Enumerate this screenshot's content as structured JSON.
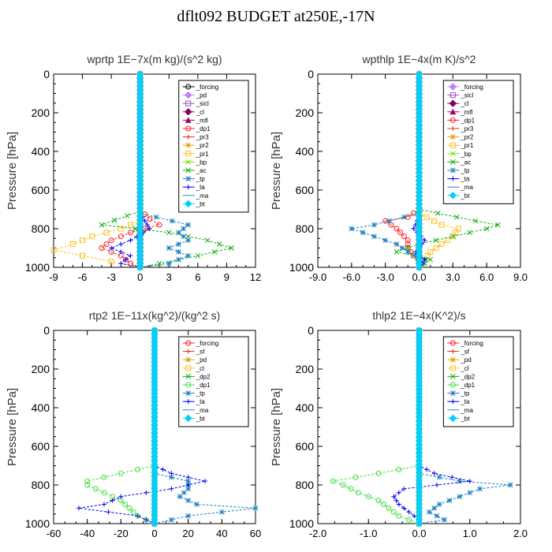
{
  "page_title": "dflt092  BUDGET at250E,-17N",
  "chart_data": [
    {
      "type": "line",
      "title": "wprtp   1E−7x(m kg)/(s^2 kg)",
      "ylabel": "Pressure [hPa]",
      "xlim": [
        -9,
        12
      ],
      "ylim": [
        1000,
        0
      ],
      "xticks": [
        "-9",
        "-6",
        "-3",
        "0",
        "3",
        "6",
        "9",
        "12"
      ],
      "xtick_values": [
        -9,
        -6,
        -3,
        0,
        3,
        6,
        9,
        12
      ],
      "yticks": [
        "0",
        "200",
        "400",
        "600",
        "800",
        "1000"
      ],
      "ytick_values": [
        0,
        200,
        400,
        600,
        800,
        1000
      ],
      "legend_position": "top-right",
      "series": [
        {
          "name": "_forcing",
          "color": "#000000",
          "marker": "circle",
          "p": [
            0,
            1000
          ],
          "v": [
            0,
            0
          ]
        },
        {
          "name": "_pd",
          "color": "#c080ff",
          "marker": "diamond",
          "p": [
            0,
            1000
          ],
          "v": [
            0,
            0
          ]
        },
        {
          "name": "_sicl",
          "color": "#a050c0",
          "marker": "square",
          "p": [
            0,
            1000
          ],
          "v": [
            0,
            0
          ]
        },
        {
          "name": "_cl",
          "color": "#800060",
          "marker": "diamond",
          "p": [
            0,
            1000
          ],
          "v": [
            0,
            0
          ]
        },
        {
          "name": "_mfl",
          "color": "#a00060",
          "marker": "triangle",
          "p": [
            0,
            1000
          ],
          "v": [
            0,
            0
          ]
        },
        {
          "name": "_dp1",
          "color": "#ff2020",
          "marker": "circle",
          "p": [
            0,
            700,
            750,
            780,
            820,
            860,
            900,
            940,
            980,
            1000
          ],
          "v": [
            0,
            0,
            1,
            2,
            -1,
            -3,
            -4,
            -2,
            -1,
            0
          ]
        },
        {
          "name": "_pr3",
          "color": "#e03020",
          "marker": "plus",
          "p": [
            0,
            1000
          ],
          "v": [
            0,
            0
          ]
        },
        {
          "name": "_pr2",
          "color": "#e0a000",
          "marker": "star",
          "p": [
            0,
            1000
          ],
          "v": [
            0,
            0
          ]
        },
        {
          "name": "_pr1",
          "color": "#ffc020",
          "marker": "square",
          "p": [
            0,
            760,
            800,
            840,
            880,
            910,
            940,
            970,
            1000
          ],
          "v": [
            0,
            0,
            -2,
            -5,
            -7,
            -9,
            -6,
            -3,
            0
          ]
        },
        {
          "name": "_bp",
          "color": "#80e000",
          "marker": "cross",
          "p": [
            0,
            1000
          ],
          "v": [
            0,
            0
          ]
        },
        {
          "name": "_ac",
          "color": "#10b010",
          "marker": "cross",
          "p": [
            0,
            710,
            780,
            820,
            860,
            900,
            940,
            980,
            1000
          ],
          "v": [
            0,
            0,
            -4,
            3,
            7,
            9.5,
            6,
            2,
            0
          ]
        },
        {
          "name": "_tp",
          "color": "#2080c0",
          "marker": "star",
          "p": [
            0,
            720,
            780,
            820,
            860,
            900,
            940,
            980,
            1000
          ],
          "v": [
            0,
            0,
            5,
            4,
            5,
            3,
            5,
            3,
            0
          ]
        },
        {
          "name": "_ta",
          "color": "#0000ff",
          "marker": "plus",
          "p": [
            0,
            720,
            800,
            860,
            900,
            940,
            980,
            1000
          ],
          "v": [
            0,
            0,
            1,
            -1,
            -3,
            -1,
            -2,
            0
          ]
        },
        {
          "name": "_ma",
          "color": "#3080e0",
          "marker": "none",
          "p": [
            0,
            1000
          ],
          "v": [
            0,
            0
          ]
        },
        {
          "name": "_bt",
          "color": "#00d0ff",
          "marker": "diamond",
          "p": [
            0,
            1000
          ],
          "v": [
            0,
            0
          ]
        }
      ]
    },
    {
      "type": "line",
      "title": "wpthlp   1E−4x(m K)/s^2",
      "ylabel": "Pressure [hPa]",
      "xlim": [
        -9,
        9
      ],
      "ylim": [
        1000,
        0
      ],
      "xticks": [
        "-9.0",
        "-6.0",
        "-3.0",
        "0.0",
        "3.0",
        "6.0",
        "9.0"
      ],
      "xtick_values": [
        -9,
        -6,
        -3,
        0,
        3,
        6,
        9
      ],
      "yticks": [
        "0",
        "200",
        "400",
        "600",
        "800",
        "1000"
      ],
      "ytick_values": [
        0,
        200,
        400,
        600,
        800,
        1000
      ],
      "legend_position": "top-right",
      "series": [
        {
          "name": "_forcing",
          "color": "#c080ff",
          "marker": "diamond",
          "p": [
            0,
            1000
          ],
          "v": [
            0,
            0
          ]
        },
        {
          "name": "_sicl",
          "color": "#a050c0",
          "marker": "square",
          "p": [
            0,
            1000
          ],
          "v": [
            0,
            0
          ]
        },
        {
          "name": "_cl",
          "color": "#800060",
          "marker": "diamond",
          "p": [
            0,
            1000
          ],
          "v": [
            0,
            0
          ]
        },
        {
          "name": "_mfl",
          "color": "#a00060",
          "marker": "triangle",
          "p": [
            0,
            1000
          ],
          "v": [
            0,
            0
          ]
        },
        {
          "name": "_dp1",
          "color": "#ff2020",
          "marker": "circle",
          "p": [
            0,
            700,
            740,
            760,
            800,
            860,
            900,
            940,
            980,
            1000
          ],
          "v": [
            0,
            0,
            -1,
            -3,
            -2,
            -1,
            -1,
            -0.5,
            0.3,
            0
          ]
        },
        {
          "name": "_pr3",
          "color": "#e03020",
          "marker": "plus",
          "p": [
            0,
            1000
          ],
          "v": [
            0,
            0
          ]
        },
        {
          "name": "_pr2",
          "color": "#e0a000",
          "marker": "star",
          "p": [
            0,
            1000
          ],
          "v": [
            0,
            0
          ]
        },
        {
          "name": "_pr1",
          "color": "#ffc020",
          "marker": "square",
          "p": [
            0,
            720,
            780,
            800,
            840,
            880,
            920,
            960,
            1000
          ],
          "v": [
            0,
            0,
            2,
            3.5,
            3,
            2,
            1,
            0.5,
            0
          ]
        },
        {
          "name": "_bp",
          "color": "#80e000",
          "marker": "cross",
          "p": [
            0,
            1000
          ],
          "v": [
            0,
            0
          ]
        },
        {
          "name": "_ac",
          "color": "#10b010",
          "marker": "cross",
          "p": [
            0,
            700,
            760,
            780,
            800,
            840,
            880,
            920,
            960,
            1000
          ],
          "v": [
            0,
            0,
            5,
            7,
            6,
            3,
            0,
            -2,
            1,
            0
          ]
        },
        {
          "name": "_tp",
          "color": "#2080c0",
          "marker": "star",
          "p": [
            0,
            720,
            780,
            800,
            840,
            880,
            920,
            960,
            1000
          ],
          "v": [
            0,
            0,
            -4,
            -6,
            -4,
            -2,
            -1,
            0.5,
            0
          ]
        },
        {
          "name": "_ta",
          "color": "#0000ff",
          "marker": "plus",
          "p": [
            0,
            740,
            800,
            860,
            920,
            960,
            1000
          ],
          "v": [
            0,
            0,
            -0.5,
            0.5,
            -0.3,
            0.5,
            0
          ]
        },
        {
          "name": "_ma",
          "color": "#3080e0",
          "marker": "none",
          "p": [
            0,
            1000
          ],
          "v": [
            0,
            0
          ]
        },
        {
          "name": "_bt",
          "color": "#00d0ff",
          "marker": "diamond",
          "p": [
            0,
            1000
          ],
          "v": [
            0,
            0
          ]
        }
      ]
    },
    {
      "type": "line",
      "title": "rtp2   1E−11x(kg^2)/(kg^2 s)",
      "ylabel": "Pressure [hPa]",
      "xlim": [
        -60,
        60
      ],
      "ylim": [
        1000,
        0
      ],
      "xticks": [
        "-60",
        "-40",
        "-20",
        "0",
        "20",
        "40",
        "60"
      ],
      "xtick_values": [
        -60,
        -40,
        -20,
        0,
        20,
        40,
        60
      ],
      "yticks": [
        "0",
        "200",
        "400",
        "600",
        "800",
        "1000"
      ],
      "ytick_values": [
        0,
        200,
        400,
        600,
        800,
        1000
      ],
      "legend_position": "top-right",
      "series": [
        {
          "name": "_forcing",
          "color": "#ff2020",
          "marker": "circle",
          "p": [
            0,
            1000
          ],
          "v": [
            0,
            0
          ]
        },
        {
          "name": "_sf",
          "color": "#e03020",
          "marker": "plus",
          "p": [
            0,
            1000
          ],
          "v": [
            0,
            0
          ]
        },
        {
          "name": "_pd",
          "color": "#e0a000",
          "marker": "star",
          "p": [
            0,
            1000
          ],
          "v": [
            0,
            0
          ]
        },
        {
          "name": "_cl",
          "color": "#ffc020",
          "marker": "square",
          "p": [
            0,
            1000
          ],
          "v": [
            0,
            0
          ]
        },
        {
          "name": "_dp2",
          "color": "#10b010",
          "marker": "cross",
          "p": [
            0,
            1000
          ],
          "v": [
            0,
            0
          ]
        },
        {
          "name": "_dp1",
          "color": "#40e040",
          "marker": "circle",
          "p": [
            0,
            700,
            740,
            780,
            800,
            840,
            880,
            920,
            960,
            1000
          ],
          "v": [
            0,
            0,
            -20,
            -40,
            -40,
            -30,
            -20,
            -15,
            -10,
            0
          ]
        },
        {
          "name": "_tp",
          "color": "#2080c0",
          "marker": "star",
          "p": [
            0,
            740,
            780,
            820,
            860,
            900,
            920,
            960,
            1000
          ],
          "v": [
            0,
            0,
            20,
            20,
            15,
            25,
            60,
            20,
            0
          ]
        },
        {
          "name": "_ta",
          "color": "#0000ff",
          "marker": "plus",
          "p": [
            0,
            700,
            740,
            780,
            820,
            860,
            900,
            920,
            960,
            1000
          ],
          "v": [
            0,
            0,
            10,
            30,
            10,
            -20,
            -30,
            -45,
            -10,
            0
          ]
        },
        {
          "name": "_ma",
          "color": "#3080e0",
          "marker": "none",
          "p": [
            0,
            1000
          ],
          "v": [
            0,
            0
          ]
        },
        {
          "name": "_bt",
          "color": "#00d0ff",
          "marker": "diamond",
          "p": [
            0,
            1000
          ],
          "v": [
            0,
            0
          ]
        }
      ]
    },
    {
      "type": "line",
      "title": "thlp2   1E−4x(K^2)/s",
      "ylabel": "Pressure [hPa]",
      "xlim": [
        -2,
        2
      ],
      "ylim": [
        1000,
        0
      ],
      "xticks": [
        "-2.0",
        "-1.0",
        "0.0",
        "1.0",
        "2.0"
      ],
      "xtick_values": [
        -2,
        -1,
        0,
        1,
        2
      ],
      "yticks": [
        "0",
        "200",
        "400",
        "600",
        "800",
        "1000"
      ],
      "ytick_values": [
        0,
        200,
        400,
        600,
        800,
        1000
      ],
      "legend_position": "top-right",
      "series": [
        {
          "name": "_forcing",
          "color": "#ff2020",
          "marker": "circle",
          "p": [
            0,
            1000
          ],
          "v": [
            0,
            0
          ]
        },
        {
          "name": "_sf",
          "color": "#e03020",
          "marker": "plus",
          "p": [
            0,
            1000
          ],
          "v": [
            0,
            0
          ]
        },
        {
          "name": "_pd",
          "color": "#e0a000",
          "marker": "star",
          "p": [
            0,
            1000
          ],
          "v": [
            0,
            0
          ]
        },
        {
          "name": "_cl",
          "color": "#ffc020",
          "marker": "square",
          "p": [
            0,
            1000
          ],
          "v": [
            0,
            0
          ]
        },
        {
          "name": "_dp2",
          "color": "#10b010",
          "marker": "cross",
          "p": [
            0,
            1000
          ],
          "v": [
            0,
            0
          ]
        },
        {
          "name": "_dp1",
          "color": "#40e040",
          "marker": "circle",
          "p": [
            0,
            700,
            740,
            780,
            800,
            840,
            880,
            920,
            960,
            1000
          ],
          "v": [
            0,
            0,
            -0.8,
            -1.7,
            -1.5,
            -1.2,
            -0.8,
            -0.6,
            -0.4,
            0
          ]
        },
        {
          "name": "_tp",
          "color": "#2080c0",
          "marker": "star",
          "p": [
            0,
            740,
            780,
            800,
            820,
            860,
            900,
            940,
            980,
            1000
          ],
          "v": [
            0,
            0,
            0.8,
            1.8,
            1.2,
            0.8,
            0.4,
            0.2,
            0.5,
            0
          ]
        },
        {
          "name": "_ta",
          "color": "#0000ff",
          "marker": "plus",
          "p": [
            0,
            700,
            740,
            780,
            820,
            860,
            900,
            940,
            980,
            1000
          ],
          "v": [
            0,
            0,
            0.3,
            1,
            -0.3,
            -0.5,
            -0.4,
            -0.2,
            0,
            0
          ]
        },
        {
          "name": "_ma",
          "color": "#3080e0",
          "marker": "none",
          "p": [
            0,
            1000
          ],
          "v": [
            0,
            0
          ]
        },
        {
          "name": "_bt",
          "color": "#00d0ff",
          "marker": "diamond",
          "p": [
            0,
            1000
          ],
          "v": [
            0,
            0
          ]
        }
      ]
    }
  ]
}
